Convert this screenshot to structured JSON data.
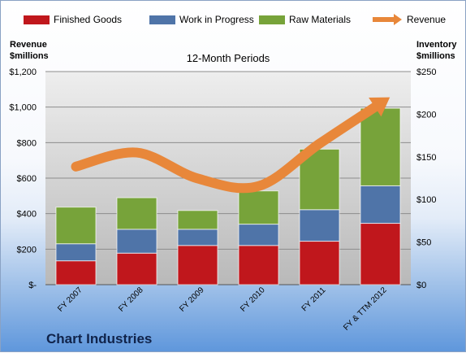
{
  "chart_data": {
    "type": "bar",
    "stacked": true,
    "title": "12-Month Periods",
    "company": "Chart Industries",
    "categories": [
      "FY 2007",
      "FY 2008",
      "FY 2009",
      "FY 2010",
      "FY 2011",
      "FY & TTM 2012"
    ],
    "series": [
      {
        "name": "Finished Goods",
        "axis": "right",
        "color": "#c0171c",
        "values": [
          28,
          37,
          46,
          46,
          51,
          72
        ]
      },
      {
        "name": "Work in Progress",
        "axis": "right",
        "color": "#4f74a8",
        "values": [
          20,
          28,
          19,
          25,
          37,
          44
        ]
      },
      {
        "name": "Raw Materials",
        "axis": "right",
        "color": "#77a33a",
        "values": [
          43,
          37,
          22,
          39,
          71,
          91
        ]
      },
      {
        "name": "Revenue",
        "type": "line",
        "axis": "left",
        "color": "#e8873a",
        "values": [
          665,
          744,
          598,
          555,
          794,
          1020
        ]
      }
    ],
    "y_left": {
      "label": "Revenue $millions",
      "label_lines": [
        "Revenue",
        "$millions"
      ],
      "min": 0,
      "max": 1200,
      "ticks": [
        "$-",
        "$200",
        "$400",
        "$600",
        "$800",
        "$1,000",
        "$1,200"
      ]
    },
    "y_right": {
      "label": "Inventory $millions",
      "label_lines": [
        "Inventory",
        "$millions"
      ],
      "min": 0,
      "max": 250,
      "ticks": [
        "$0",
        "$50",
        "$100",
        "$150",
        "$200",
        "$250"
      ]
    },
    "grid": true,
    "legend": "top"
  }
}
